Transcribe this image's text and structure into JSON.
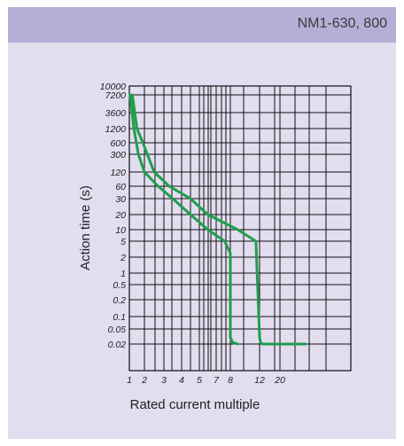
{
  "header": {
    "title": "NM1-630, 800"
  },
  "chart_data": {
    "type": "line",
    "title": "NM1-630, 800",
    "xlabel": "Rated current multiple",
    "ylabel": "Action time (s)",
    "x_ticks": [
      "1",
      "2",
      "3",
      "4",
      "5",
      "7",
      "8",
      "12",
      "20"
    ],
    "y_ticks": [
      "10000",
      "7200",
      "3600",
      "1200",
      "600",
      "300",
      "120",
      "60",
      "30",
      "20",
      "10",
      "5",
      "2",
      "1",
      "0.5",
      "0.2",
      "0.1",
      "0.05",
      "0.02"
    ],
    "grid": true,
    "colors": {
      "curve": "#1f9e4d",
      "grid": "#111111",
      "card": "#e2ddef",
      "header": "#b7aed8"
    },
    "series": [
      {
        "values": [
          {
            "x": 1.05,
            "y": 7200
          },
          {
            "x": 1.3,
            "y": 1200
          },
          {
            "x": 1.6,
            "y": 300
          },
          {
            "x": 2.0,
            "y": 120
          },
          {
            "x": 2.7,
            "y": 60
          },
          {
            "x": 3.5,
            "y": 30
          },
          {
            "x": 4.5,
            "y": 20
          },
          {
            "x": 6,
            "y": 10
          },
          {
            "x": 7.6,
            "y": 5
          },
          {
            "x": 8,
            "y": 2.5
          },
          {
            "x": 8,
            "y": 0.03
          },
          {
            "x": 8.3,
            "y": 0.022
          },
          {
            "x": 9,
            "y": 0.02
          }
        ]
      },
      {
        "values": [
          {
            "x": 1.2,
            "y": 7200
          },
          {
            "x": 1.5,
            "y": 1200
          },
          {
            "x": 1.9,
            "y": 600
          },
          {
            "x": 2.5,
            "y": 120
          },
          {
            "x": 3.3,
            "y": 60
          },
          {
            "x": 4.5,
            "y": 30
          },
          {
            "x": 6,
            "y": 20
          },
          {
            "x": 9,
            "y": 10
          },
          {
            "x": 11.5,
            "y": 5
          },
          {
            "x": 12,
            "y": 0.03
          },
          {
            "x": 12.4,
            "y": 0.022
          },
          {
            "x": 13,
            "y": 0.02
          },
          {
            "x": 20,
            "y": 0.02
          },
          {
            "x": 30,
            "y": 0.02
          }
        ]
      }
    ]
  }
}
